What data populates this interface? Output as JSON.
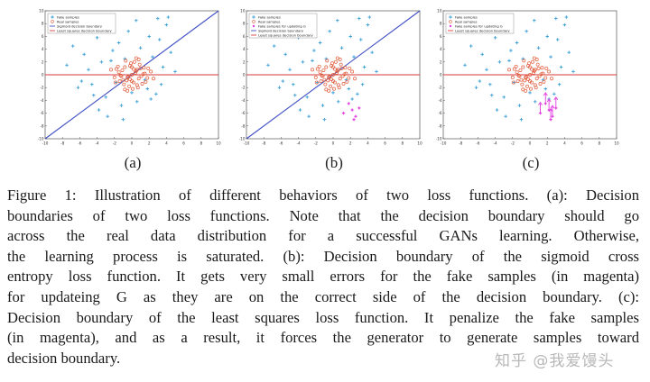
{
  "figure": {
    "panels": [
      {
        "label": "(a)",
        "legend": [
          "Fake samples",
          "Real samples",
          "Sigmoid decision boundary",
          "Least squares decision boundary"
        ],
        "show_blue_line": true,
        "magenta_mode": "none"
      },
      {
        "label": "(b)",
        "legend": [
          "Fake samples",
          "Real samples",
          "Fake samples for updating G",
          "Sigmoid decision boundary",
          "Least squares decision boundary"
        ],
        "show_blue_line": true,
        "magenta_mode": "points"
      },
      {
        "label": "(c)",
        "legend": [
          "Fake samples",
          "Real samples",
          "Fake samples for updating G",
          "Least squares decision boundary"
        ],
        "show_blue_line": false,
        "magenta_mode": "arrows"
      }
    ],
    "x_ticks": [
      "-10",
      "-8",
      "-6",
      "-4",
      "-2",
      "0",
      "2",
      "4",
      "6",
      "8",
      "10"
    ],
    "y_ticks": [
      "10",
      "8",
      "6",
      "4",
      "2",
      "0",
      "-2",
      "-4",
      "-6",
      "-8",
      "-10"
    ],
    "colors": {
      "fake": "#3a9fd8",
      "real": "#e05a3a",
      "magenta": "#e23be0",
      "sigmoid": "#3f4fc4",
      "least_squares": "#d83a3a"
    }
  },
  "chart_data": [
    {
      "type": "scatter",
      "xlim": [
        -10,
        10
      ],
      "ylim": [
        -10,
        10
      ],
      "legend_placement": "top-left",
      "lines": [
        {
          "name": "Sigmoid decision boundary",
          "x": [
            -10,
            10
          ],
          "y": [
            -10,
            10
          ]
        },
        {
          "name": "Least squares decision boundary",
          "x": [
            -10,
            10
          ],
          "y": [
            0,
            0
          ]
        }
      ],
      "series": [
        {
          "name": "Fake samples",
          "x": [
            -7.5,
            -6.8,
            -6.2,
            -5.5,
            -5.0,
            -4.6,
            -4.0,
            -3.5,
            -3.0,
            -2.6,
            -2.2,
            -1.8,
            -1.5,
            -1.2,
            -0.8,
            -0.4,
            0.0,
            0.5,
            1.0,
            1.5,
            2.0,
            2.4,
            2.8,
            3.2,
            3.6,
            4.0,
            4.5,
            5.0,
            -3.8,
            -2.8,
            -1.0,
            0.6,
            2.2,
            3.0,
            4.2,
            -5.8,
            -4.4,
            -2.4,
            1.8,
            3.4
          ],
          "y": [
            1.5,
            4.5,
            -2.0,
            3.2,
            0.8,
            -1.5,
            5.8,
            2.0,
            -3.5,
            7.2,
            3.8,
            -1.2,
            5.0,
            -4.8,
            2.5,
            6.8,
            -2.8,
            8.5,
            4.2,
            -0.8,
            6.0,
            2.8,
            -3.0,
            5.5,
            1.2,
            7.8,
            3.5,
            0.5,
            -5.5,
            -6.5,
            -7.0,
            -4.2,
            -3.8,
            8.8,
            9.0,
            -1.0,
            -3.2,
            2.2,
            -2.2,
            -1.5
          ]
        },
        {
          "name": "Real samples",
          "x": [
            0.0,
            0.5,
            -0.5,
            1.0,
            -1.0,
            1.5,
            -1.5,
            0.2,
            -0.2,
            0.8,
            -0.8,
            1.2,
            -1.2,
            0.3,
            -0.3,
            0.6,
            -0.6,
            1.8,
            -1.8,
            0.1,
            -0.1,
            0.9,
            -0.9,
            1.4,
            -1.4,
            0.4,
            -0.4,
            0.7,
            -0.7,
            2.2,
            -2.0,
            0.0,
            1.1,
            -1.1,
            0.5,
            -0.5,
            1.6,
            -1.6,
            0.2,
            -0.2,
            1.3,
            -1.3,
            0.8,
            -0.8,
            2.5,
            -2.4,
            0.0,
            1.9,
            -1.9,
            0.6
          ],
          "y": [
            0.0,
            0.6,
            -0.4,
            1.0,
            -0.8,
            0.2,
            0.4,
            -1.2,
            1.4,
            -0.6,
            1.2,
            -1.4,
            -0.2,
            2.0,
            -1.8,
            0.8,
            -0.9,
            -0.5,
            0.9,
            -2.2,
            1.8,
            1.6,
            -1.5,
            1.1,
            -1.0,
            0.3,
            -0.3,
            -2.0,
            2.2,
            0.5,
            -0.4,
            -1.0,
            -0.2,
            0.7,
            2.6,
            -2.5,
            -1.1,
            1.3,
            0.9,
            -0.7,
            0.1,
            -0.1,
            2.4,
            -2.3,
            -0.6,
            0.8,
            1.2,
            1.0,
            -1.2,
            -1.6
          ]
        }
      ]
    },
    {
      "type": "scatter",
      "xlim": [
        -10,
        10
      ],
      "ylim": [
        -10,
        10
      ],
      "legend_placement": "top-left",
      "lines": [
        {
          "name": "Sigmoid decision boundary",
          "x": [
            -10,
            10
          ],
          "y": [
            -10,
            10
          ]
        },
        {
          "name": "Least squares decision boundary",
          "x": [
            -10,
            10
          ],
          "y": [
            0,
            0
          ]
        }
      ],
      "series": [
        {
          "name": "Fake samples for updating G",
          "x": [
            1.2,
            1.8,
            2.2,
            2.6,
            3.0,
            2.4
          ],
          "y": [
            -6.0,
            -4.5,
            -5.5,
            -6.5,
            -5.2,
            -7.0
          ]
        }
      ]
    },
    {
      "type": "scatter",
      "xlim": [
        -10,
        10
      ],
      "ylim": [
        -10,
        10
      ],
      "legend_placement": "top-left",
      "lines": [
        {
          "name": "Least squares decision boundary",
          "x": [
            -10,
            10
          ],
          "y": [
            0,
            0
          ]
        }
      ],
      "series": [
        {
          "name": "Fake samples for updating G",
          "x": [
            1.2,
            1.8,
            2.2,
            2.6,
            3.0,
            2.4
          ],
          "y": [
            -6.0,
            -4.5,
            -5.5,
            -6.5,
            -5.2,
            -7.0
          ]
        }
      ]
    }
  ],
  "caption": {
    "lines": [
      "Figure 1: Illustration of different behaviors of two loss functions. (a): Decision",
      "boundaries of two loss functions. Note that the decision boundary should go",
      "across the real data distribution for a successful GANs learning. Otherwise,",
      "the learning process is saturated. (b): Decision boundary of the sigmoid cross",
      "entropy loss function. It gets very small errors for the fake samples (in magenta)",
      "for updateing G as they are on the correct side of the decision boundary. (c):",
      "Decision boundary of the least squares loss function. It penalize the fake samples",
      "(in magenta), and as a result, it forces the generator to generate samples toward",
      "decision boundary."
    ]
  },
  "watermark": "知乎 @我爱馒头"
}
